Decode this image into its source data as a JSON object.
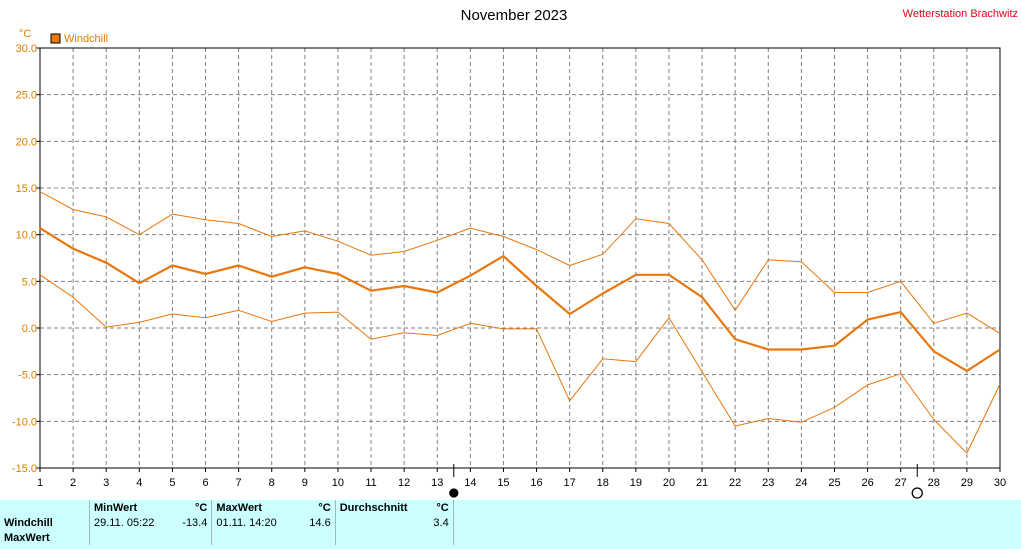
{
  "header": {
    "title": "November 2023",
    "station": "Wetterstation Brachwitz",
    "unit": "°C",
    "legend_label": "Windchill",
    "legend_color": "#e8770e"
  },
  "chart_data": {
    "type": "line",
    "title": "November 2023",
    "ylabel": "°C",
    "ylim": [
      -15,
      30
    ],
    "yticks": [
      "30.0",
      "25.0",
      "20.0",
      "15.0",
      "10.0",
      "5.0",
      "0.0",
      "-5.0",
      "-10.0",
      "-15.0"
    ],
    "x": [
      1,
      2,
      3,
      4,
      5,
      6,
      7,
      8,
      9,
      10,
      11,
      12,
      13,
      14,
      15,
      16,
      17,
      18,
      19,
      20,
      21,
      22,
      23,
      24,
      25,
      26,
      27,
      28,
      29,
      30
    ],
    "grid": true,
    "legend_position": "top-left",
    "series": [
      {
        "name": "Windchill",
        "role": "avg",
        "color": "#e8770e",
        "values": [
          10.7,
          8.5,
          7.0,
          4.8,
          6.7,
          5.8,
          6.7,
          5.5,
          6.5,
          5.8,
          4.0,
          4.5,
          3.8,
          5.6,
          7.7,
          4.5,
          1.5,
          3.7,
          5.7,
          5.7,
          3.3,
          -1.2,
          -2.3,
          -2.3,
          -1.9,
          0.9,
          1.7,
          -2.5,
          -4.6,
          -2.3
        ]
      },
      {
        "role": "max",
        "color": "#e8770e",
        "values": [
          14.6,
          12.7,
          11.9,
          10.0,
          12.2,
          11.6,
          11.2,
          9.8,
          10.4,
          9.3,
          7.8,
          8.2,
          9.4,
          10.7,
          9.8,
          8.4,
          6.7,
          7.9,
          11.7,
          11.2,
          7.3,
          1.9,
          7.3,
          7.1,
          3.8,
          3.8,
          5.0,
          0.5,
          1.6,
          -0.6
        ]
      },
      {
        "role": "min",
        "color": "#e8770e",
        "values": [
          5.7,
          3.3,
          0.1,
          0.6,
          1.5,
          1.1,
          1.9,
          0.7,
          1.6,
          1.7,
          -1.2,
          -0.5,
          -0.8,
          0.5,
          -0.1,
          -0.1,
          -7.8,
          -3.3,
          -3.6,
          1.1,
          -4.7,
          -10.5,
          -9.7,
          -10.1,
          -8.5,
          -6.1,
          -4.9,
          -9.8,
          -13.4,
          -6.0
        ]
      }
    ],
    "markers": [
      {
        "position": 13.5,
        "symbol": "new-moon"
      },
      {
        "position": 27.5,
        "symbol": "full-moon"
      }
    ]
  },
  "stats": {
    "headers": {
      "min": "MinWert",
      "min_unit": "°C",
      "max": "MaxWert",
      "max_unit": "°C",
      "avg": "Durchschnitt",
      "avg_unit": "°C"
    },
    "rows": [
      {
        "label": "Windchill",
        "min_time": "29.11.  05:22",
        "min_val": "-13.4",
        "max_time": "01.11.  14:20",
        "max_val": "14.6",
        "avg_val": "3.4"
      },
      {
        "label": "MaxWert"
      }
    ]
  }
}
